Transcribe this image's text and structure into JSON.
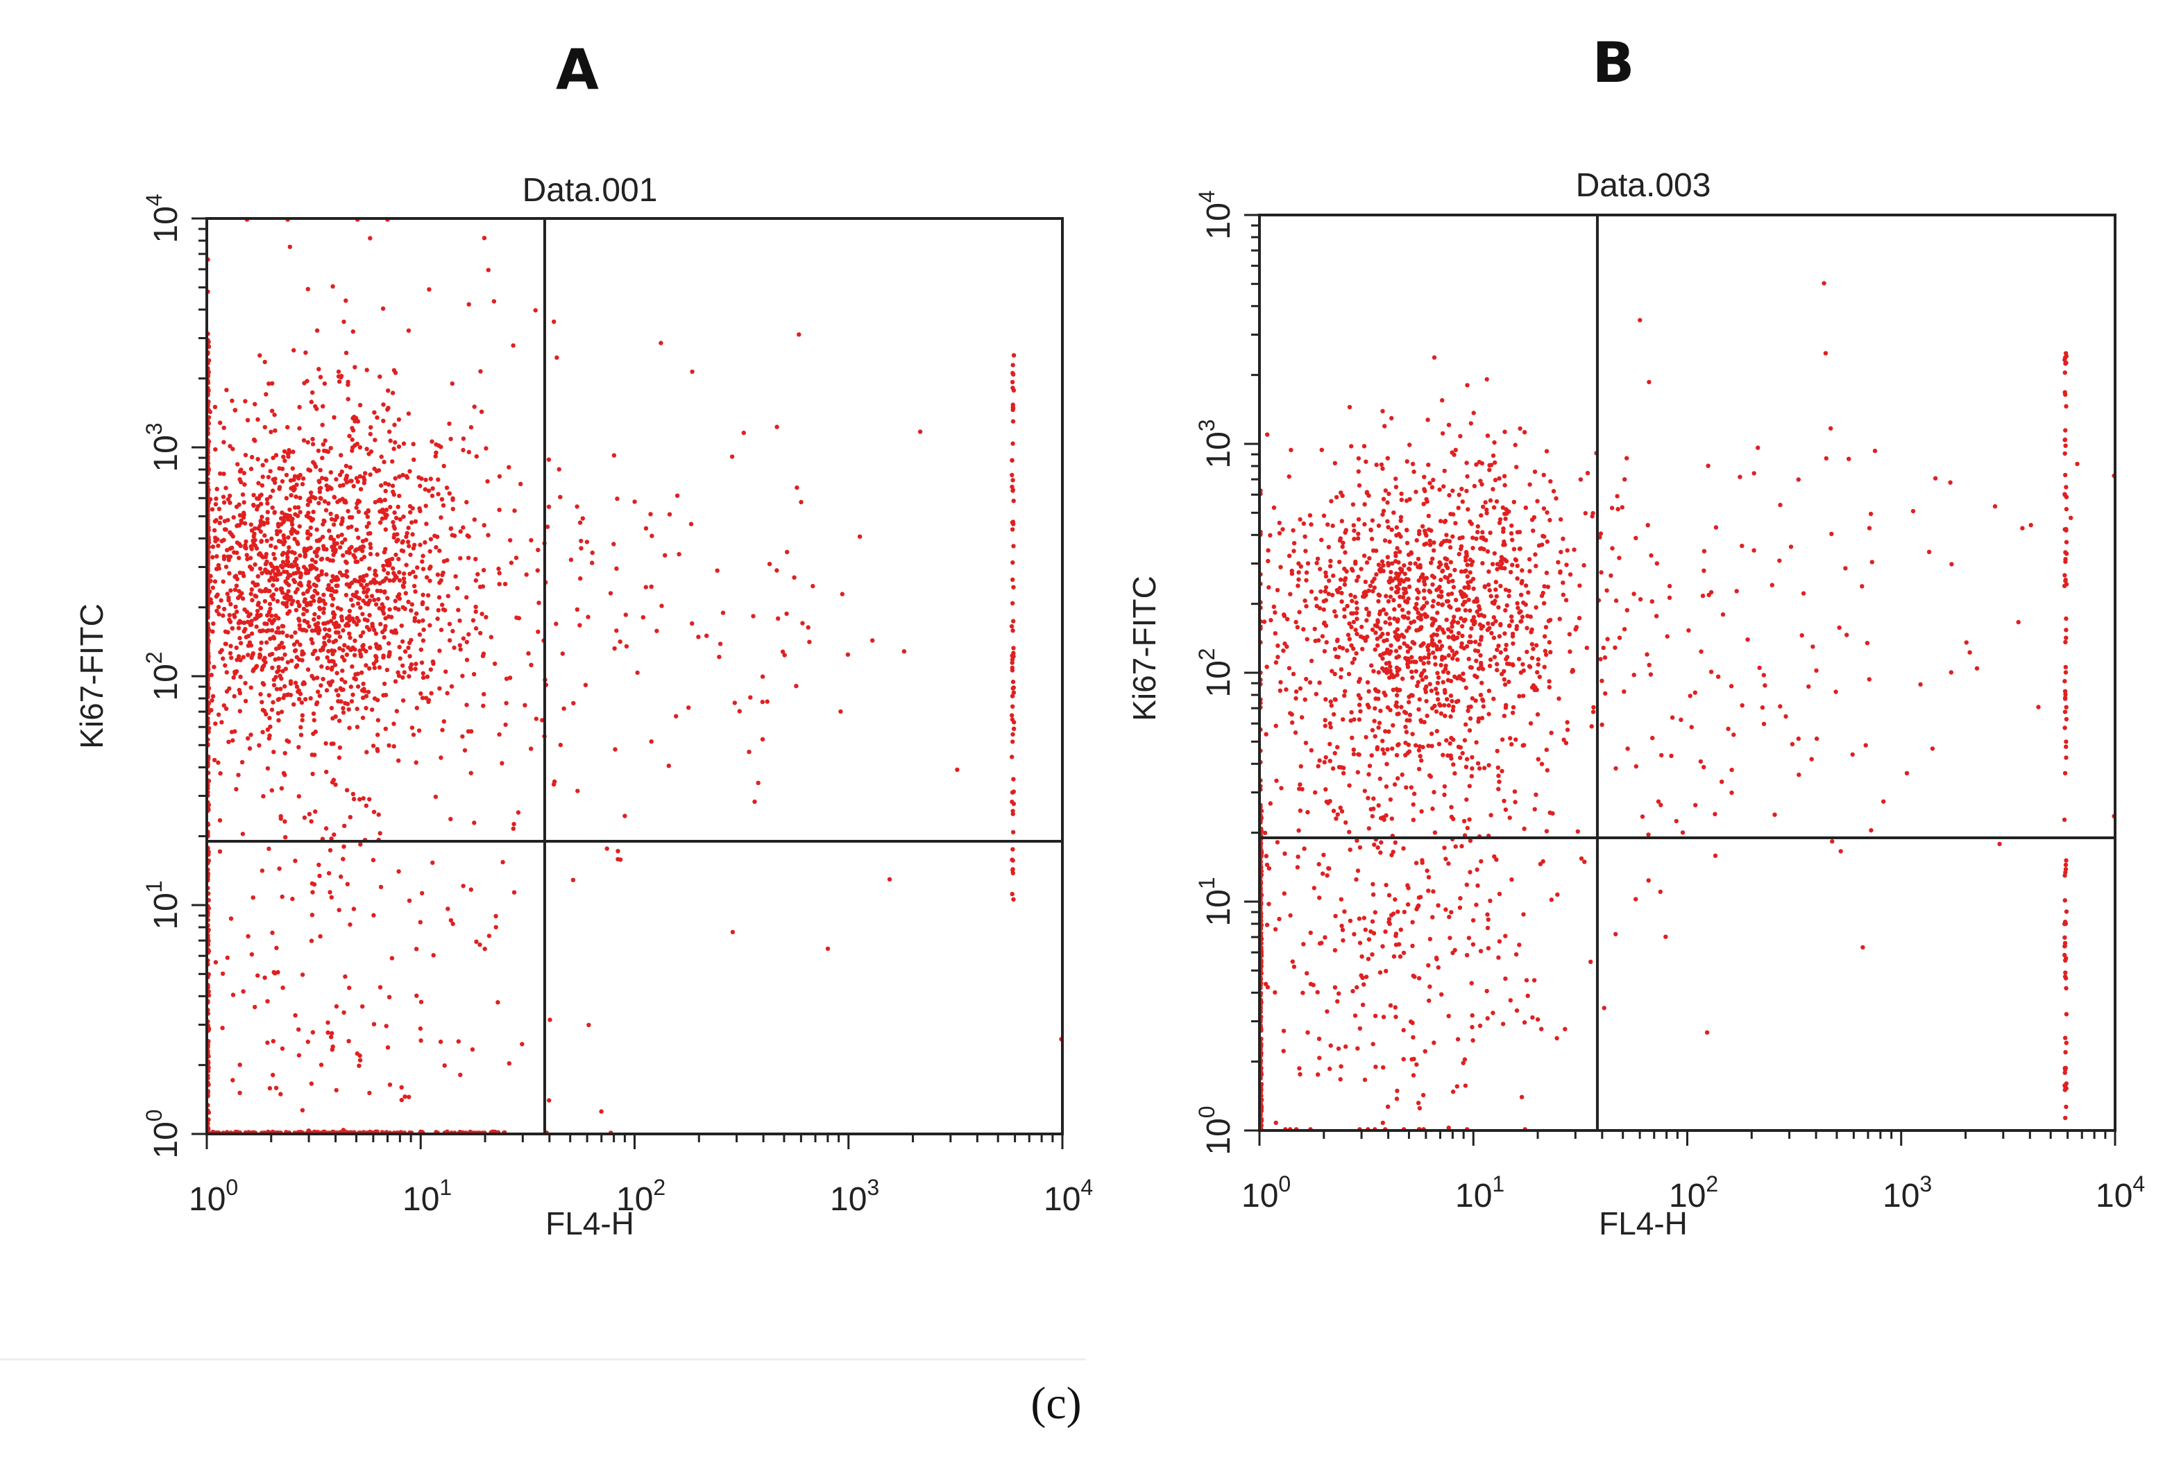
{
  "figure": {
    "caption": "(c)",
    "point_color": "#e02020",
    "axis_color": "#222222"
  },
  "chart_data": [
    {
      "type": "scatter",
      "panel_label": "A",
      "title": "Data.001",
      "xlabel": "FL4-H",
      "ylabel": "Ki67-FITC",
      "xscale": "log",
      "yscale": "log",
      "xlim": [
        1,
        10000
      ],
      "ylim": [
        1,
        10000
      ],
      "x_ticks": [
        {
          "base": "10",
          "exp": "0",
          "value": 1
        },
        {
          "base": "10",
          "exp": "1",
          "value": 10
        },
        {
          "base": "10",
          "exp": "2",
          "value": 100
        },
        {
          "base": "10",
          "exp": "3",
          "value": 1000
        },
        {
          "base": "10",
          "exp": "4",
          "value": 10000
        }
      ],
      "y_ticks": [
        {
          "base": "10",
          "exp": "0",
          "value": 1
        },
        {
          "base": "10",
          "exp": "1",
          "value": 10
        },
        {
          "base": "10",
          "exp": "2",
          "value": 100
        },
        {
          "base": "10",
          "exp": "3",
          "value": 1000
        },
        {
          "base": "10",
          "exp": "4",
          "value": 10000
        }
      ],
      "quadrant_gate": {
        "x": 38,
        "y": 19
      },
      "clusters": [
        {
          "center": [
            3.0,
            260
          ],
          "spread_decades": [
            0.38,
            0.35
          ],
          "count": 1500
        },
        {
          "center": [
            3.5,
            300
          ],
          "spread_decades": [
            0.55,
            0.6
          ],
          "count": 450
        },
        {
          "center": [
            3.5,
            4
          ],
          "spread_decades": [
            0.45,
            0.45
          ],
          "count": 180
        },
        {
          "center": [
            110,
            150
          ],
          "spread_decades": [
            0.55,
            0.55
          ],
          "count": 120
        },
        {
          "center": [
            500,
            5
          ],
          "spread_decades": [
            0.9,
            0.3
          ],
          "count": 12
        }
      ],
      "axis_pileups": [
        {
          "axis": "y",
          "at": 1.0,
          "range": [
            1,
            25
          ],
          "count": 140
        },
        {
          "axis": "x",
          "at": 1.0,
          "range": [
            1.0,
            3000
          ],
          "count": 220
        },
        {
          "axis": "x",
          "at": 5800,
          "range": [
            10,
            3000
          ],
          "count": 70
        }
      ]
    },
    {
      "type": "scatter",
      "panel_label": "B",
      "title": "Data.003",
      "xlabel": "FL4-H",
      "ylabel": "Ki67-FITC",
      "xscale": "log",
      "yscale": "log",
      "xlim": [
        1,
        10000
      ],
      "ylim": [
        1,
        10000
      ],
      "x_ticks": [
        {
          "base": "10",
          "exp": "0",
          "value": 1
        },
        {
          "base": "10",
          "exp": "1",
          "value": 10
        },
        {
          "base": "10",
          "exp": "2",
          "value": 100
        },
        {
          "base": "10",
          "exp": "3",
          "value": 1000
        },
        {
          "base": "10",
          "exp": "4",
          "value": 10000
        }
      ],
      "y_ticks": [
        {
          "base": "10",
          "exp": "0",
          "value": 1
        },
        {
          "base": "10",
          "exp": "1",
          "value": 10
        },
        {
          "base": "10",
          "exp": "2",
          "value": 100
        },
        {
          "base": "10",
          "exp": "3",
          "value": 1000
        },
        {
          "base": "10",
          "exp": "4",
          "value": 10000
        }
      ],
      "quadrant_gate": {
        "x": 38,
        "y": 19
      },
      "clusters": [
        {
          "center": [
            5.5,
            150
          ],
          "spread_decades": [
            0.35,
            0.35
          ],
          "count": 1000
        },
        {
          "center": [
            8.0,
            300
          ],
          "spread_decades": [
            0.35,
            0.3
          ],
          "count": 300
        },
        {
          "center": [
            4.0,
            8
          ],
          "spread_decades": [
            0.4,
            0.5
          ],
          "count": 380
        },
        {
          "center": [
            120,
            100
          ],
          "spread_decades": [
            0.5,
            0.6
          ],
          "count": 120
        },
        {
          "center": [
            400,
            200
          ],
          "spread_decades": [
            0.7,
            0.5
          ],
          "count": 40
        }
      ],
      "axis_pileups": [
        {
          "axis": "x",
          "at": 1.0,
          "range": [
            1.0,
            25
          ],
          "count": 240
        },
        {
          "axis": "x",
          "at": 5800,
          "range": [
            1,
            3000
          ],
          "count": 90
        }
      ]
    }
  ]
}
